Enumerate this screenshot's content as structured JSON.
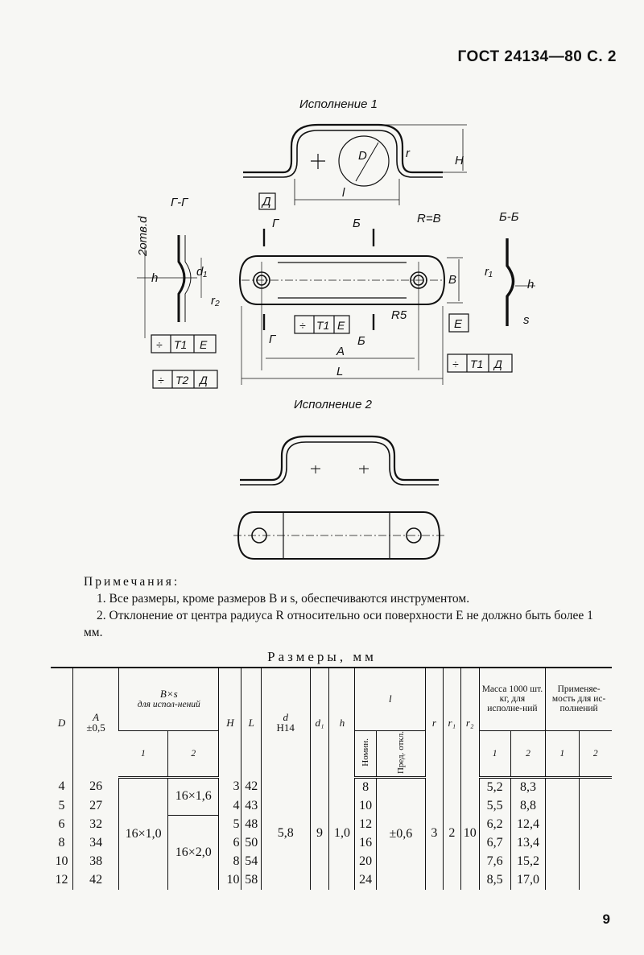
{
  "header": "ГОСТ 24134—80 С. 2",
  "drawing": {
    "variant1": "Исполнение 1",
    "variant2": "Исполнение 2",
    "section_g": "Г-Г",
    "section_b": "Б-Б",
    "labels": {
      "D": "D",
      "r": "r",
      "H": "H",
      "l": "l",
      "datum_d": "Д",
      "two_holes": "2отв.d",
      "d1": "d₁",
      "h": "h",
      "r2": "r₂",
      "G": "Г",
      "B": "Б",
      "R_eq_B": "R=B",
      "Bdim": "B",
      "R5": "R5",
      "E": "Е",
      "r1": "r₁",
      "s": "s",
      "A": "A",
      "L": "L"
    },
    "tolerance_frames": [
      [
        "÷",
        "T1",
        "E"
      ],
      [
        "÷",
        "T1",
        "E"
      ],
      [
        "÷",
        "T1",
        "Д"
      ],
      [
        "÷",
        "T2",
        "Д"
      ]
    ]
  },
  "notes": {
    "title": "Примечания:",
    "items": [
      "1. Все размеры, кроме размеров B и s, обеспечиваются инструментом.",
      "2. Отклонение от центра радиуса R относительно оси поверхности E не должно быть более 1 мм."
    ]
  },
  "table": {
    "title": "Размеры, мм",
    "headers": {
      "D": "D",
      "A": "A",
      "A_tol": "±0,5",
      "Bs": "B×s",
      "Bs_sub": "для испол-нений",
      "H": "H",
      "L": "L",
      "d": "d",
      "d_tol": "H14",
      "d1": "d₁",
      "h": "h",
      "l": "l",
      "r": "r",
      "r1": "r₁",
      "r2": "r₂",
      "mass": "Масса 1000 шт. кг, для исполне-ний",
      "applic": "Применяе-мость для ис-полнений",
      "v1": "1",
      "v2": "2",
      "nom": "Номин.",
      "dev": "Пред. откл."
    },
    "rows": [
      {
        "D": "4",
        "A": "26",
        "H": "3",
        "L": "42",
        "l": "8",
        "m1": "5,2",
        "m2": "8,3"
      },
      {
        "D": "5",
        "A": "27",
        "H": "4",
        "L": "43",
        "l": "10",
        "m1": "5,5",
        "m2": "8,8"
      },
      {
        "D": "6",
        "A": "32",
        "H": "5",
        "L": "48",
        "l": "12",
        "m1": "6,2",
        "m2": "12,4"
      },
      {
        "D": "8",
        "A": "34",
        "H": "6",
        "L": "50",
        "l": "16",
        "m1": "6,7",
        "m2": "13,4"
      },
      {
        "D": "10",
        "A": "38",
        "H": "8",
        "L": "54",
        "l": "20",
        "m1": "7,6",
        "m2": "15,2"
      },
      {
        "D": "12",
        "A": "42",
        "H": "10",
        "L": "58",
        "l": "24",
        "m1": "8,5",
        "m2": "17,0"
      }
    ],
    "merged": {
      "bs1": "16×1,0",
      "bs2_a": "16×1,6",
      "bs2_b": "16×2,0",
      "d": "5,8",
      "d1": "9",
      "h": "1,0",
      "l_dev": "±0,6",
      "r": "3",
      "r1": "2",
      "r2": "10"
    }
  },
  "page_number": "9"
}
